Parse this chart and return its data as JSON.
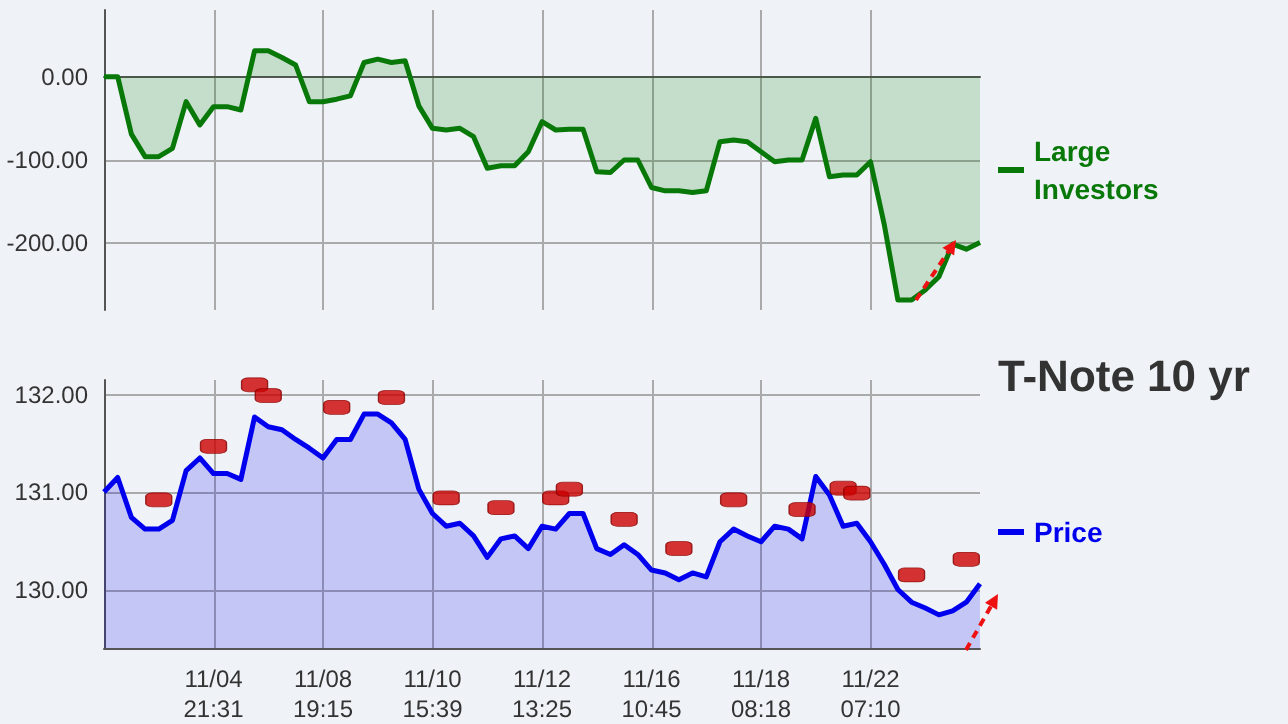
{
  "chart_data": [
    {
      "type": "area",
      "tick_labels": "y",
      "grid": true,
      "legend": "right",
      "categories": [
        null,
        null,
        null,
        null,
        null,
        null,
        null,
        null,
        null,
        null,
        null,
        null,
        null,
        null,
        null,
        null,
        null,
        null,
        null,
        null,
        null,
        null,
        null,
        null,
        null,
        null,
        null,
        null,
        null,
        null,
        null,
        null,
        null,
        null,
        null,
        null,
        null,
        null,
        null,
        null,
        null,
        null,
        null,
        null,
        null,
        null,
        null,
        null,
        null,
        null,
        null,
        null,
        null,
        null,
        null,
        null,
        null,
        null,
        null,
        null,
        null,
        null,
        null,
        null,
        null
      ],
      "ylim": [
        -280,
        80
      ],
      "yticks": [
        {
          "value": -200,
          "label": "-200.00"
        },
        {
          "value": -100,
          "label": "-100.00"
        },
        {
          "value": 0,
          "label": "0.00"
        }
      ],
      "series": [
        {
          "name": "Large Investors",
          "color": "#087808",
          "values": [
            0,
            0,
            -69,
            -96,
            -96,
            -86,
            -30,
            -58,
            -36,
            -36,
            -40,
            31,
            31,
            23,
            14,
            -30,
            -30,
            -27,
            -23,
            17,
            21,
            17,
            19,
            -35,
            -62,
            -64,
            -62,
            -72,
            -110,
            -107,
            -107,
            -90,
            -54,
            -64,
            -63,
            -63,
            -114,
            -115,
            -100,
            -100,
            -133,
            -137,
            -137,
            -139,
            -137,
            -78,
            -76,
            -78,
            -90,
            -102,
            -100,
            -100,
            -50,
            -120,
            -118,
            -118,
            -102,
            -177,
            -268,
            -268,
            -256,
            -240,
            -201,
            -207,
            -199
          ]
        }
      ]
    },
    {
      "type": "area",
      "title": "T-Note 10 yr",
      "grid": true,
      "legend": "right",
      "categories": [
        null,
        null,
        null,
        null,
        null,
        null,
        null,
        null,
        "11/04\n21:31",
        null,
        null,
        null,
        null,
        null,
        null,
        null,
        "11/08\n19:15",
        null,
        null,
        null,
        null,
        null,
        null,
        null,
        "11/10\n15:39",
        null,
        null,
        null,
        null,
        null,
        null,
        null,
        "11/12\n13:25",
        null,
        null,
        null,
        null,
        null,
        null,
        null,
        "11/16\n10:45",
        null,
        null,
        null,
        null,
        null,
        null,
        null,
        "11/18\n08:18",
        null,
        null,
        null,
        null,
        null,
        null,
        null,
        "11/22\n07:10",
        null,
        null,
        null,
        null,
        null,
        null,
        null,
        null
      ],
      "ylim": [
        129.4,
        132.15
      ],
      "yticks": [
        {
          "value": 130,
          "label": "130.00"
        },
        {
          "value": 131,
          "label": "131.00"
        },
        {
          "value": 132,
          "label": "132.00"
        }
      ],
      "series": [
        {
          "name": "Price",
          "color": "#0000ee",
          "values": [
            131.0,
            131.15,
            130.74,
            130.62,
            130.62,
            130.71,
            131.22,
            131.35,
            131.19,
            131.19,
            131.13,
            131.77,
            131.67,
            131.64,
            131.54,
            131.45,
            131.35,
            131.54,
            131.54,
            131.8,
            131.8,
            131.71,
            131.54,
            131.03,
            130.78,
            130.65,
            130.68,
            130.55,
            130.33,
            130.52,
            130.55,
            130.42,
            130.65,
            130.62,
            130.78,
            130.78,
            130.42,
            130.36,
            130.46,
            130.36,
            130.2,
            130.17,
            130.1,
            130.17,
            130.13,
            130.49,
            130.62,
            130.55,
            130.49,
            130.65,
            130.62,
            130.52,
            131.16,
            130.97,
            130.65,
            130.68,
            130.49,
            130.26,
            130.0,
            129.87,
            129.81,
            129.74,
            129.78,
            129.87,
            130.06
          ]
        },
        {
          "type": "scatter",
          "color": "#cc0000",
          "values": [
            null,
            null,
            null,
            null,
            130.92,
            null,
            null,
            null,
            131.47,
            null,
            null,
            132.1,
            131.99,
            null,
            null,
            null,
            null,
            131.87,
            null,
            null,
            null,
            131.97,
            null,
            null,
            null,
            130.94,
            null,
            null,
            null,
            130.84,
            null,
            null,
            null,
            130.94,
            131.03,
            null,
            null,
            null,
            130.72,
            null,
            null,
            null,
            130.42,
            null,
            null,
            null,
            130.92,
            null,
            null,
            null,
            null,
            130.82,
            null,
            null,
            131.04,
            130.99,
            null,
            null,
            null,
            130.15,
            null,
            null,
            null,
            130.31,
            null
          ]
        }
      ]
    }
  ]
}
